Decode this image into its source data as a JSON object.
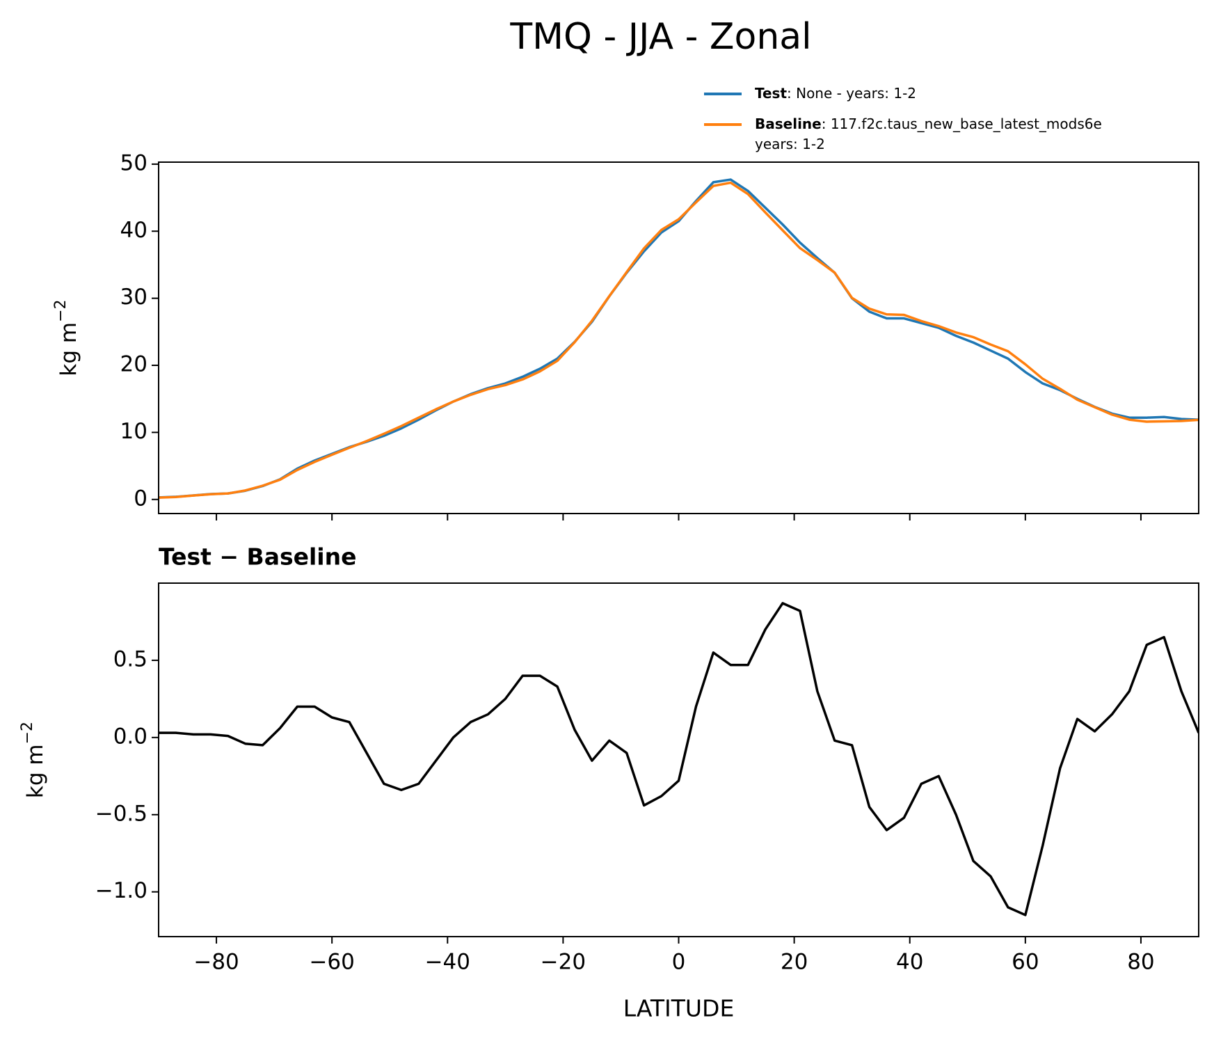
{
  "title": "TMQ - JJA - Zonal",
  "chart_data": [
    {
      "type": "line",
      "x": [
        -90,
        -87,
        -84,
        -81,
        -78,
        -75,
        -72,
        -69,
        -66,
        -63,
        -60,
        -57,
        -54,
        -51,
        -48,
        -45,
        -42,
        -39,
        -36,
        -33,
        -30,
        -27,
        -24,
        -21,
        -18,
        -15,
        -12,
        -9,
        -6,
        -3,
        0,
        3,
        6,
        9,
        12,
        15,
        18,
        21,
        24,
        27,
        30,
        33,
        36,
        39,
        42,
        45,
        48,
        51,
        54,
        57,
        60,
        63,
        66,
        69,
        72,
        75,
        78,
        81,
        84,
        87,
        90
      ],
      "series": [
        {
          "name": "Test",
          "label_detail": [
            ": None - years: 1-2"
          ],
          "color": "#1f77b4",
          "values": [
            0.3,
            0.4,
            0.6,
            0.8,
            0.9,
            1.3,
            2.0,
            3.0,
            4.6,
            5.8,
            6.8,
            7.8,
            8.6,
            9.5,
            10.6,
            11.9,
            13.3,
            14.6,
            15.7,
            16.6,
            17.3,
            18.3,
            19.5,
            21.0,
            23.5,
            26.5,
            30.3,
            33.8,
            37.0,
            39.8,
            41.5,
            44.5,
            47.3,
            47.7,
            46.0,
            43.5,
            41.0,
            38.3,
            36.0,
            33.8,
            30.0,
            28.0,
            27.0,
            27.0,
            26.3,
            25.6,
            24.4,
            23.4,
            22.2,
            21.0,
            19.0,
            17.3,
            16.3,
            15.0,
            13.8,
            12.8,
            12.2,
            12.2,
            12.3,
            12.0,
            11.9
          ]
        },
        {
          "name": "Baseline",
          "label_detail": [
            ": 117.f2c.taus_new_base_latest_mods6e",
            "years: 1-2"
          ],
          "color": "#ff7f0e",
          "values": [
            0.27,
            0.37,
            0.58,
            0.78,
            0.89,
            1.34,
            2.05,
            2.94,
            4.4,
            5.6,
            6.67,
            7.7,
            8.7,
            9.8,
            10.94,
            12.2,
            13.45,
            14.6,
            15.6,
            16.45,
            17.05,
            17.9,
            19.1,
            20.67,
            23.45,
            26.65,
            30.32,
            33.9,
            37.44,
            40.18,
            41.78,
            44.3,
            46.75,
            47.23,
            45.53,
            42.8,
            40.13,
            37.48,
            35.7,
            33.82,
            30.05,
            28.45,
            27.6,
            27.52,
            26.6,
            25.85,
            24.9,
            24.2,
            23.1,
            22.1,
            20.15,
            18.0,
            16.5,
            14.88,
            13.76,
            12.65,
            11.9,
            11.6,
            11.65,
            11.7,
            11.87
          ]
        }
      ],
      "ylabel": "kg m",
      "ylabel_sup": "−2",
      "xlim": [
        -90,
        90
      ],
      "ylim": [
        -2.1,
        50.3
      ],
      "xticks": [
        -80,
        -60,
        -40,
        -20,
        0,
        20,
        40,
        60,
        80
      ],
      "yticks": [
        0,
        10,
        20,
        30,
        40,
        50
      ]
    },
    {
      "type": "line",
      "title": "Test − Baseline",
      "x": [
        -90,
        -87,
        -84,
        -81,
        -78,
        -75,
        -72,
        -69,
        -66,
        -63,
        -60,
        -57,
        -54,
        -51,
        -48,
        -45,
        -42,
        -39,
        -36,
        -33,
        -30,
        -27,
        -24,
        -21,
        -18,
        -15,
        -12,
        -9,
        -6,
        -3,
        0,
        3,
        6,
        9,
        12,
        15,
        18,
        21,
        24,
        27,
        30,
        33,
        36,
        39,
        42,
        45,
        48,
        51,
        54,
        57,
        60,
        63,
        66,
        69,
        72,
        75,
        78,
        81,
        84,
        87,
        90
      ],
      "series": [
        {
          "color": "#000000",
          "values": [
            0.03,
            0.03,
            0.02,
            0.02,
            0.01,
            -0.04,
            -0.05,
            0.06,
            0.2,
            0.2,
            0.13,
            0.1,
            -0.1,
            -0.3,
            -0.34,
            -0.3,
            -0.15,
            0.0,
            0.1,
            0.15,
            0.25,
            0.4,
            0.4,
            0.33,
            0.05,
            -0.15,
            -0.02,
            -0.1,
            -0.44,
            -0.38,
            -0.28,
            0.2,
            0.55,
            0.47,
            0.47,
            0.7,
            0.87,
            0.82,
            0.3,
            -0.02,
            -0.05,
            -0.45,
            -0.6,
            -0.52,
            -0.3,
            -0.25,
            -0.5,
            -0.8,
            -0.9,
            -1.1,
            -1.15,
            -0.7,
            -0.2,
            0.12,
            0.04,
            0.15,
            0.3,
            0.6,
            0.65,
            0.3,
            0.03
          ]
        }
      ],
      "ylabel": "kg m",
      "ylabel_sup": "−2",
      "xlabel": "LATITUDE",
      "xlim": [
        -90,
        90
      ],
      "ylim": [
        -1.29,
        1.0
      ],
      "xticks": [
        {
          "value": -80,
          "label": "−80"
        },
        {
          "value": -60,
          "label": "−60"
        },
        {
          "value": -40,
          "label": "−40"
        },
        {
          "value": -20,
          "label": "−20"
        },
        0,
        20,
        40,
        60,
        80
      ],
      "yticks": [
        {
          "value": -1.0,
          "label": "−1.0"
        },
        {
          "value": -0.5,
          "label": "−0.5"
        },
        {
          "value": 0,
          "label": "0.0"
        },
        0.5
      ]
    }
  ]
}
